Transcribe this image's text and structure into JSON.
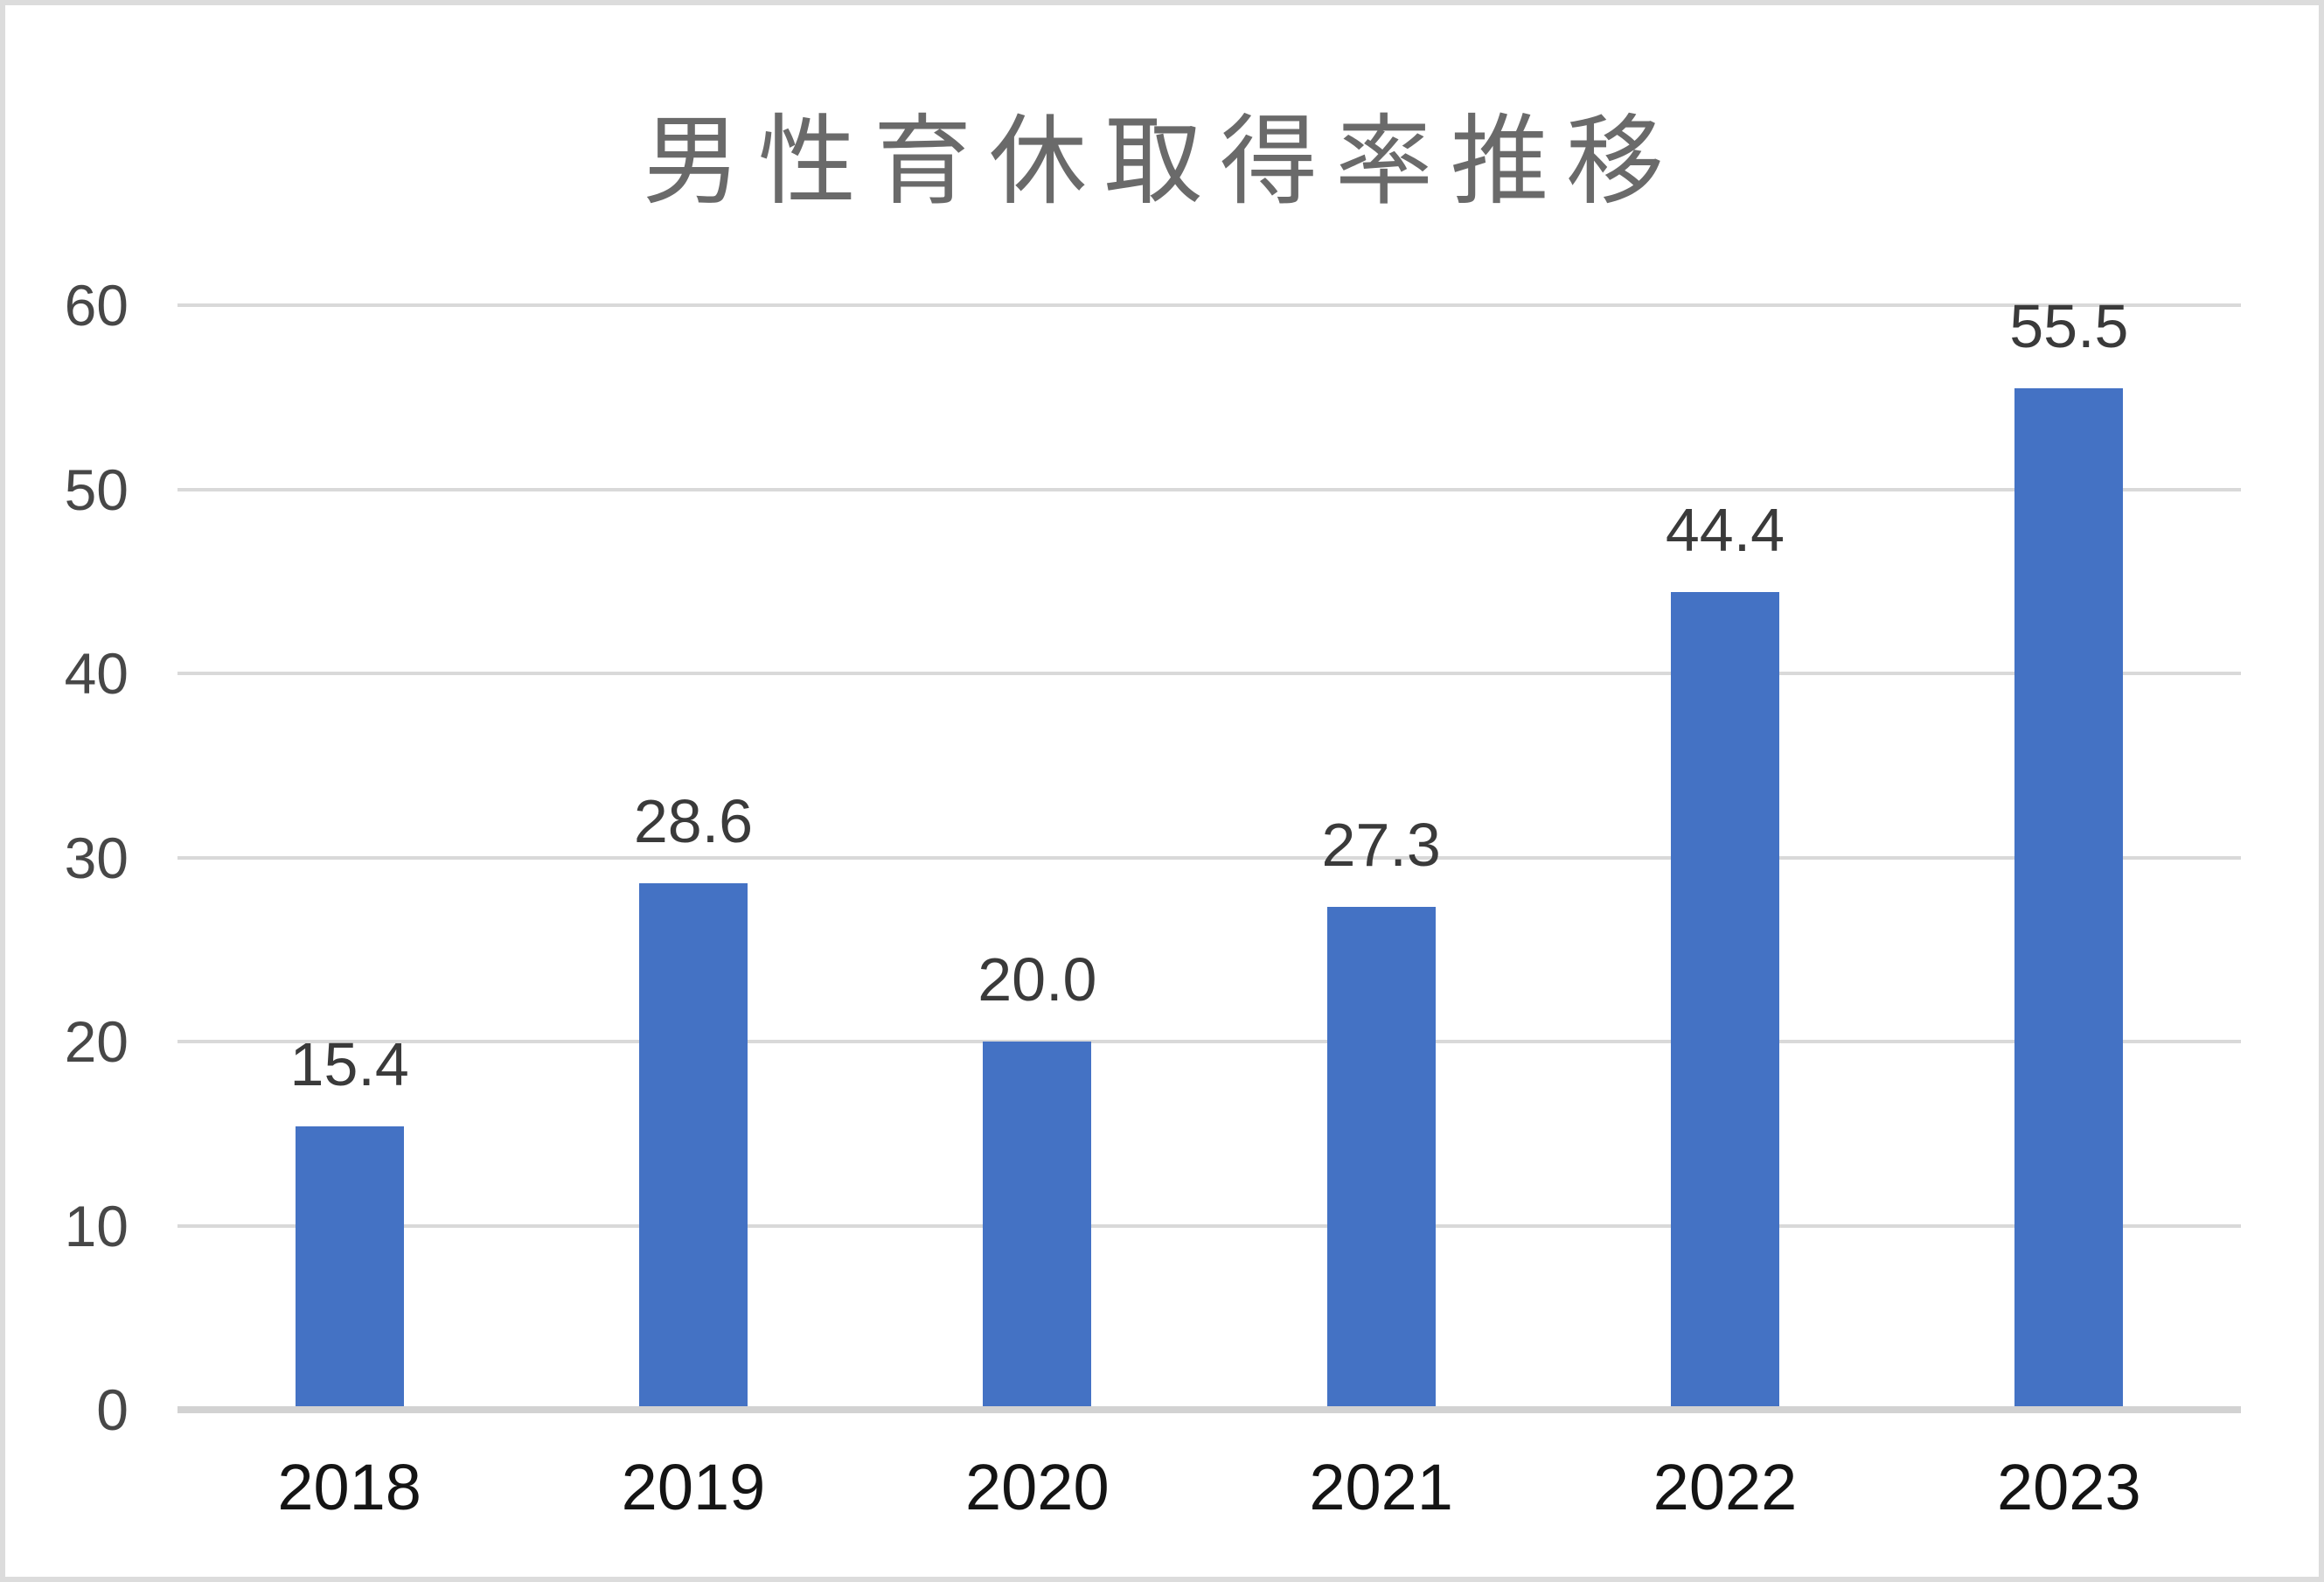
{
  "chart_data": {
    "type": "bar",
    "title": "男性育休取得率推移",
    "categories": [
      "2018",
      "2019",
      "2020",
      "2021",
      "2022",
      "2023"
    ],
    "values": [
      15.4,
      28.6,
      20.0,
      27.3,
      44.4,
      55.5
    ],
    "data_labels": [
      "15.4",
      "28.6",
      "20.0",
      "27.3",
      "44.4",
      "55.5"
    ],
    "xlabel": "",
    "ylabel": "",
    "ylim": [
      0,
      60
    ],
    "ytick_interval": 10,
    "yticks": [
      "0",
      "10",
      "20",
      "30",
      "40",
      "50",
      "60"
    ],
    "grid": "horizontal",
    "legend_position": "none",
    "colors": {
      "bar": "#4472C4",
      "gridline": "#d9d9d9",
      "axis_line": "#d2d2d2",
      "title_text": "#6a6a6a",
      "y_tick_text": "#474747",
      "x_tick_text": "#141414",
      "data_label_text": "#3a3a3a",
      "frame_border": "#dcdcdc",
      "background": "#ffffff"
    }
  }
}
